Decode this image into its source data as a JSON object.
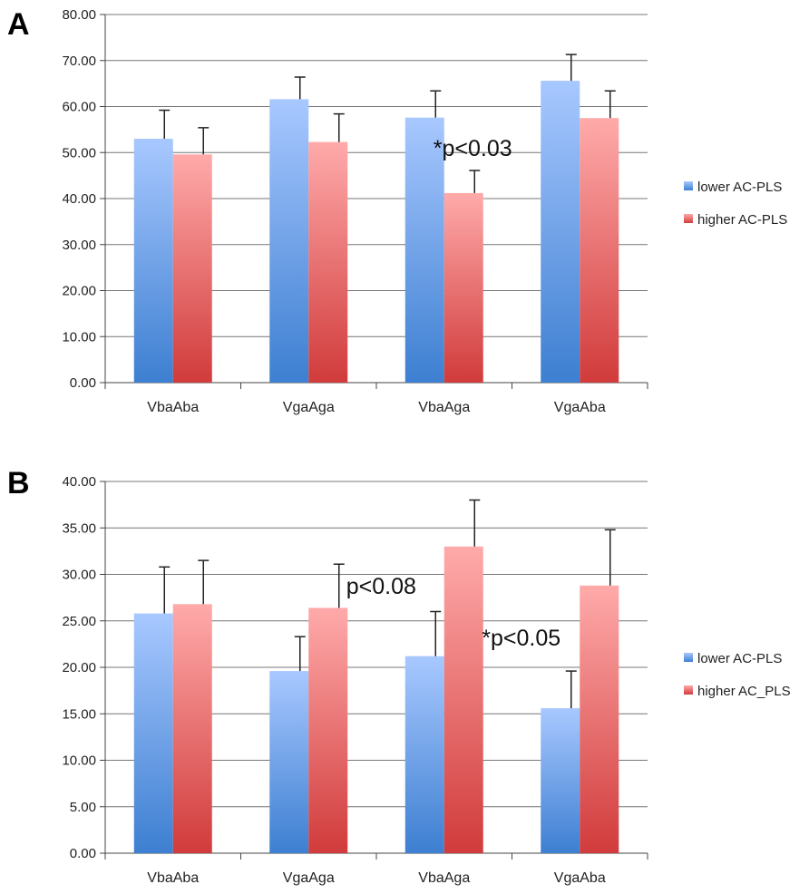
{
  "chart_data": [
    {
      "type": "bar",
      "panel_label": "A",
      "categories": [
        "VbaAba",
        "VgaAga",
        "VbaAga",
        "VgaAba"
      ],
      "ylim": [
        0,
        80
      ],
      "yticks": [
        0,
        10,
        20,
        30,
        40,
        50,
        60,
        70,
        80
      ],
      "ytick_labels": [
        "0.00",
        "10.00",
        "20.00",
        "30.00",
        "40.00",
        "50.00",
        "60.00",
        "70.00",
        "80.00"
      ],
      "grid": true,
      "legend_position": "right",
      "series": [
        {
          "name": "lower AC-PLS",
          "values": [
            53.0,
            61.6,
            57.6,
            65.6
          ],
          "errors": [
            6.2,
            4.8,
            5.8,
            5.7
          ],
          "color_top": "#a8c8ff",
          "color_bottom": "#3d7fd1"
        },
        {
          "name": "higher AC-PLS",
          "values": [
            49.6,
            52.3,
            41.2,
            57.5
          ],
          "errors": [
            5.8,
            6.1,
            4.9,
            5.9
          ],
          "color_top": "#ffaaaa",
          "color_bottom": "#d13b3b"
        }
      ],
      "annotations": [
        {
          "text": "*p<0.03",
          "category": "VbaAga",
          "y": 51
        }
      ]
    },
    {
      "type": "bar",
      "panel_label": "B",
      "categories": [
        "VbaAba",
        "VgaAga",
        "VbaAga",
        "VgaAba"
      ],
      "ylim": [
        0,
        40
      ],
      "yticks": [
        0,
        5,
        10,
        15,
        20,
        25,
        30,
        35,
        40
      ],
      "ytick_labels": [
        "0.00",
        "5.00",
        "10.00",
        "15.00",
        "20.00",
        "25.00",
        "30.00",
        "35.00",
        "40.00"
      ],
      "grid": true,
      "legend_position": "right",
      "series": [
        {
          "name": "lower AC-PLS",
          "values": [
            25.8,
            19.6,
            21.2,
            15.6
          ],
          "errors": [
            5.0,
            3.7,
            4.8,
            4.0
          ],
          "color_top": "#a8c8ff",
          "color_bottom": "#3d7fd1"
        },
        {
          "name": "higher AC_PLS",
          "values": [
            26.8,
            26.4,
            33.0,
            28.8
          ],
          "errors": [
            4.7,
            4.7,
            5.0,
            6.0
          ],
          "color_top": "#ffaaaa",
          "color_bottom": "#d13b3b"
        }
      ],
      "annotations": [
        {
          "text": "p<0.08",
          "category": "VbaAga",
          "y": 28.8,
          "anchor": "left"
        },
        {
          "text": "*p<0.05",
          "category": "VgaAba",
          "y": 23.2,
          "anchor": "left"
        }
      ]
    }
  ]
}
